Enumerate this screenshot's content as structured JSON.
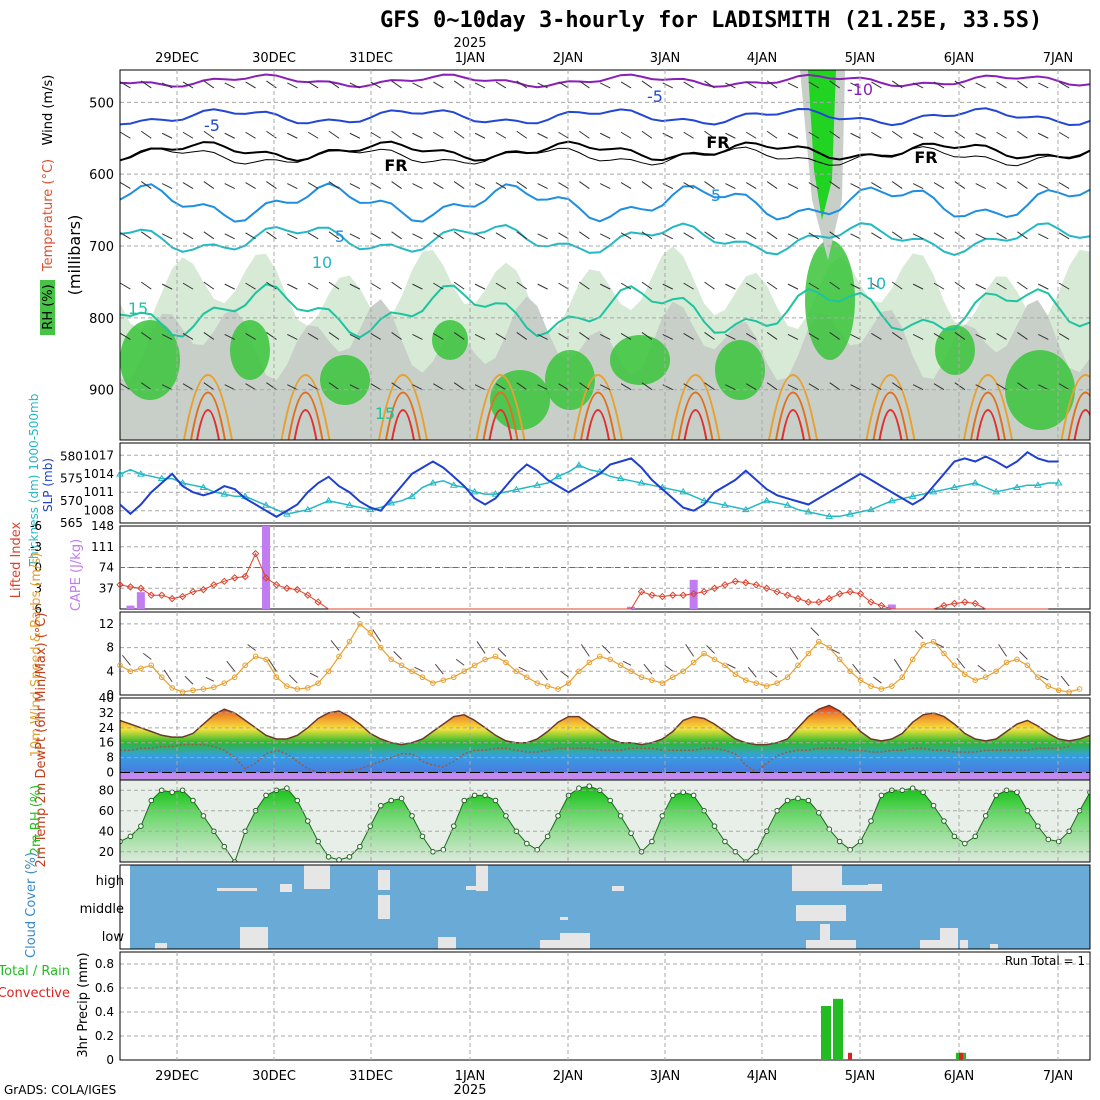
{
  "title": "GFS 0~10day 3-hourly for LADISMITH (21.25E, 33.5S)",
  "year_label": "2025",
  "credit": "GrADS: COLA/IGES",
  "date_labels": [
    "29DEC",
    "30DEC",
    "31DEC",
    "1JAN",
    "2JAN",
    "3JAN",
    "4JAN",
    "5JAN",
    "6JAN",
    "7JAN"
  ],
  "colors": {
    "grid": "#a8a8a8",
    "rh_green": "#39c439",
    "rh_light": "#d6ead6",
    "rh_gray": "#c8cfc8",
    "slp": "#1f3fcf",
    "thickness": "#22b8c4",
    "cape": "#c07cf0",
    "lifted": "#e0402a",
    "wind": "#e8a030",
    "dewpt": "#a05a3c",
    "rh2m": "#22c422",
    "cloud_bg": "#6aaad6",
    "cloud_cover": "#e6e6e6",
    "precip_total": "#22bb22",
    "precip_conv": "#dd2222"
  },
  "panels": {
    "upper": {
      "ylabel_wind": "Wind (m/s)",
      "ylabel_temp": "Temperature (°C)",
      "ylabel_rh": "RH (%)",
      "ylabel_p": "(millibars)",
      "y_ticks": [
        "500",
        "600",
        "700",
        "800",
        "900"
      ],
      "contour_labels": [
        "-10",
        "-5",
        "-5",
        "FR",
        "FR",
        "FR",
        "5",
        "5",
        "10",
        "10",
        "15",
        "15"
      ]
    },
    "slp": {
      "ylabel_thick": "Thickness (dm) 1000-500mb",
      "ylabel_slp": "SLP (mb)",
      "thick_ticks": [
        "580",
        "575",
        "570",
        "565"
      ],
      "slp_ticks": [
        "1017",
        "1014",
        "1011",
        "1008"
      ]
    },
    "cape": {
      "ylabel_li": "Lifted Index",
      "ylabel_cape": "CAPE (J/kg)",
      "li_ticks": [
        "-6",
        "-3",
        "0",
        "3",
        "6"
      ],
      "cape_ticks": [
        "148",
        "111",
        "74",
        "37"
      ]
    },
    "wind10": {
      "ylabel": "10m Wind Speed & Barbs (m/s)",
      "y_ticks": [
        "12",
        "8",
        "4",
        "0"
      ]
    },
    "temp2m": {
      "ylabel": "2m Temp 2m DewPt (6hr Min/Max) (°C)",
      "y_ticks": [
        "40",
        "32",
        "24",
        "16",
        "8",
        "0"
      ]
    },
    "rh2m": {
      "ylabel": "2m RH (%)",
      "y_ticks": [
        "80",
        "60",
        "40",
        "20"
      ]
    },
    "cloud": {
      "ylabel": "Cloud Cover (%)",
      "levels": [
        "high",
        "middle",
        "low"
      ]
    },
    "precip": {
      "ylabel": "3hr Precip (mm)",
      "legend_total": "Total / Rain",
      "legend_conv": "Convective",
      "run_total": "Run Total = 1",
      "y_ticks": [
        "0.8",
        "0.6",
        "0.4",
        "0.2",
        "0"
      ]
    }
  },
  "chart_data": [
    {
      "type": "line",
      "title": "SLP and 1000-500mb Thickness",
      "x_start": "28DEC 12Z",
      "x_step_hours": 3,
      "series": [
        {
          "name": "SLP (mb)",
          "ylim": [
            1006,
            1019
          ],
          "values": [
            1009,
            1007.5,
            1009,
            1011,
            1012.5,
            1014,
            1012,
            1011,
            1010.5,
            1011,
            1012,
            1011.5,
            1010,
            1009,
            1008,
            1007,
            1008,
            1009,
            1011,
            1012.5,
            1013.5,
            1012,
            1011,
            1009.5,
            1008.5,
            1008,
            1010,
            1012,
            1014,
            1015,
            1016,
            1015,
            1013.5,
            1012,
            1010,
            1009,
            1010,
            1012,
            1014,
            1015.5,
            1014.5,
            1013,
            1012,
            1011,
            1012,
            1013,
            1014,
            1015.5,
            1016,
            1016.5,
            1015,
            1013,
            1011.5,
            1010,
            1008.5,
            1008,
            1009,
            1011,
            1012,
            1013,
            1014.5,
            1013,
            1011.5,
            1010.5,
            1010,
            1009.5,
            1009,
            1010,
            1011,
            1012,
            1013,
            1014,
            1013,
            1012,
            1011,
            1010,
            1009,
            1010,
            1012,
            1014,
            1016,
            1016.5,
            1016,
            1016.8,
            1016,
            1015,
            1016,
            1017.5,
            1016.5,
            1016,
            1016
          ]
        },
        {
          "name": "Thickness (dm)",
          "ylim": [
            565,
            583
          ],
          "values": [
            576,
            577,
            576,
            575.5,
            575,
            575,
            574,
            573.5,
            573,
            572,
            571.5,
            571,
            571,
            570,
            569,
            568,
            567,
            567.5,
            568,
            569,
            570,
            569.5,
            569,
            568.5,
            568,
            568.5,
            569.5,
            570,
            571,
            573,
            574,
            574.5,
            573.5,
            573,
            572,
            571.5,
            571.5,
            572,
            572.5,
            573,
            573.5,
            574,
            575.5,
            576.5,
            578,
            577,
            576.5,
            575.5,
            575,
            574.5,
            574,
            573.5,
            573,
            572.5,
            572,
            571,
            570,
            569.5,
            569,
            568.5,
            568,
            569,
            570,
            569.5,
            569,
            568,
            567.5,
            567,
            566.5,
            566.5,
            567,
            567.5,
            568,
            569,
            570,
            570.5,
            571,
            571.5,
            572,
            572.5,
            573,
            573.5,
            574,
            573,
            572,
            572.5,
            573,
            573.5,
            573.5,
            574,
            574
          ]
        }
      ]
    },
    {
      "type": "bar",
      "title": "CAPE and Lifted Index",
      "cape_bars": [
        {
          "x_index": 1,
          "value": 6
        },
        {
          "x_index": 2,
          "value": 30
        },
        {
          "x_index": 14,
          "value": 148
        },
        {
          "x_index": 49,
          "value": 4
        },
        {
          "x_index": 55,
          "value": 52
        },
        {
          "x_index": 74,
          "value": 8
        }
      ],
      "lifted_index": [
        2.5,
        2.8,
        3,
        4,
        4,
        4.5,
        4.2,
        3.5,
        3.2,
        2.5,
        2,
        1.5,
        1.3,
        -2,
        1.5,
        2.5,
        3,
        3.2,
        4,
        5,
        6,
        6,
        6,
        6,
        6,
        6,
        6,
        6,
        6,
        6,
        6,
        6,
        6,
        6,
        6,
        6,
        6,
        6,
        6,
        6,
        6,
        6,
        6,
        6,
        6,
        6,
        6,
        6,
        6,
        6,
        3.5,
        4,
        4.2,
        4,
        4,
        3.8,
        3.5,
        3,
        2.5,
        2,
        2.2,
        2.5,
        3,
        3.5,
        4,
        4.5,
        5,
        5,
        4.5,
        3.8,
        3.5,
        3.8,
        5,
        5.5,
        6,
        6,
        6,
        6,
        6,
        5.5,
        5.2,
        5,
        5.2,
        6,
        6,
        6,
        6,
        6,
        6,
        6
      ]
    },
    {
      "type": "line",
      "title": "10m Wind Speed (m/s)",
      "ylim": [
        0,
        14
      ],
      "values": [
        5,
        4,
        4.5,
        5,
        3,
        1.2,
        0.5,
        0.8,
        1,
        1.3,
        2,
        3,
        5,
        6.5,
        6,
        3,
        1.5,
        1,
        1.2,
        2,
        4,
        6.5,
        9,
        12,
        10.5,
        8,
        6,
        5,
        4,
        3,
        2,
        2.5,
        3,
        4,
        5,
        6,
        6.5,
        5.5,
        4,
        3,
        2,
        1.5,
        1,
        2,
        4,
        5.5,
        6.5,
        6,
        5,
        4,
        3,
        2.5,
        2,
        3,
        4,
        5.5,
        7,
        6,
        5,
        3.5,
        2.5,
        2,
        1.5,
        2,
        3,
        5,
        7,
        9,
        8,
        6,
        4,
        2.5,
        1.5,
        1,
        1.5,
        3,
        6,
        8.5,
        9,
        7,
        5,
        3.5,
        2.5,
        3,
        4,
        5.5,
        6,
        5,
        3,
        1.5,
        0.8,
        0.5,
        1
      ]
    },
    {
      "type": "area",
      "title": "2m Temp / DewPt (°C)",
      "ylim": [
        -4,
        40
      ],
      "temp": [
        28,
        26,
        24,
        22,
        20,
        19,
        19,
        21,
        26,
        31,
        34,
        32,
        28,
        24,
        20,
        18,
        18,
        20,
        24,
        29,
        32,
        33,
        30,
        26,
        21,
        18,
        16,
        15,
        16,
        18,
        22,
        26,
        30,
        31,
        28,
        24,
        20,
        17,
        16,
        16,
        18,
        22,
        27,
        30,
        30,
        26,
        22,
        18,
        16,
        16,
        15,
        16,
        18,
        22,
        28,
        30,
        29,
        26,
        22,
        18,
        16,
        15,
        15,
        16,
        18,
        24,
        30,
        34,
        36,
        33,
        28,
        22,
        18,
        17,
        18,
        21,
        27,
        31,
        32,
        30,
        26,
        21,
        18,
        17,
        18,
        22,
        26,
        28,
        25,
        21,
        18,
        17,
        18,
        20
      ],
      "dewpt": [
        12,
        12,
        13,
        13,
        14,
        14,
        15,
        15,
        15,
        14,
        12,
        8,
        2,
        5,
        10,
        12,
        10,
        6,
        2,
        0,
        0,
        0,
        1,
        2,
        4,
        6,
        8,
        10,
        10,
        6,
        4,
        3,
        6,
        10,
        12,
        12,
        13,
        13,
        12,
        11,
        11,
        12,
        13,
        13,
        13,
        13,
        12,
        12,
        12,
        13,
        13,
        13,
        12,
        12,
        12,
        12,
        13,
        13,
        12,
        10,
        4,
        0,
        5,
        9,
        11,
        12,
        12,
        13,
        13,
        13,
        12,
        12,
        11,
        11,
        12,
        12,
        13,
        13,
        12,
        12,
        11,
        11,
        11,
        12,
        12,
        12,
        12,
        12,
        13,
        13,
        13,
        14
      ]
    },
    {
      "type": "area",
      "title": "2m RH (%)",
      "ylim": [
        10,
        90
      ],
      "values": [
        30,
        35,
        45,
        70,
        80,
        78,
        80,
        70,
        55,
        40,
        25,
        10,
        40,
        60,
        75,
        80,
        82,
        70,
        50,
        30,
        15,
        12,
        15,
        25,
        45,
        65,
        70,
        72,
        55,
        35,
        20,
        22,
        45,
        70,
        75,
        75,
        70,
        55,
        40,
        28,
        22,
        35,
        55,
        75,
        82,
        84,
        80,
        70,
        55,
        38,
        20,
        30,
        55,
        75,
        78,
        75,
        60,
        45,
        30,
        20,
        10,
        20,
        40,
        60,
        70,
        72,
        70,
        58,
        42,
        30,
        22,
        30,
        50,
        75,
        80,
        80,
        82,
        78,
        65,
        50,
        35,
        28,
        35,
        55,
        75,
        80,
        78,
        60,
        45,
        32,
        30,
        40,
        60,
        78,
        80,
        78,
        70
      ]
    },
    {
      "type": "bar",
      "title": "3hr Precip (mm)",
      "ylim": [
        0,
        0.9
      ],
      "total": [
        {
          "time": "4JAN 15Z",
          "value": 0.45
        },
        {
          "time": "4JAN 18Z",
          "value": 0.51
        },
        {
          "time": "5JAN 21Z",
          "value": 0.06
        }
      ],
      "convective": [
        {
          "time": "4JAN 21Z",
          "value": 0.06
        },
        {
          "time": "5JAN 21Z",
          "value": 0.06
        }
      ]
    }
  ]
}
